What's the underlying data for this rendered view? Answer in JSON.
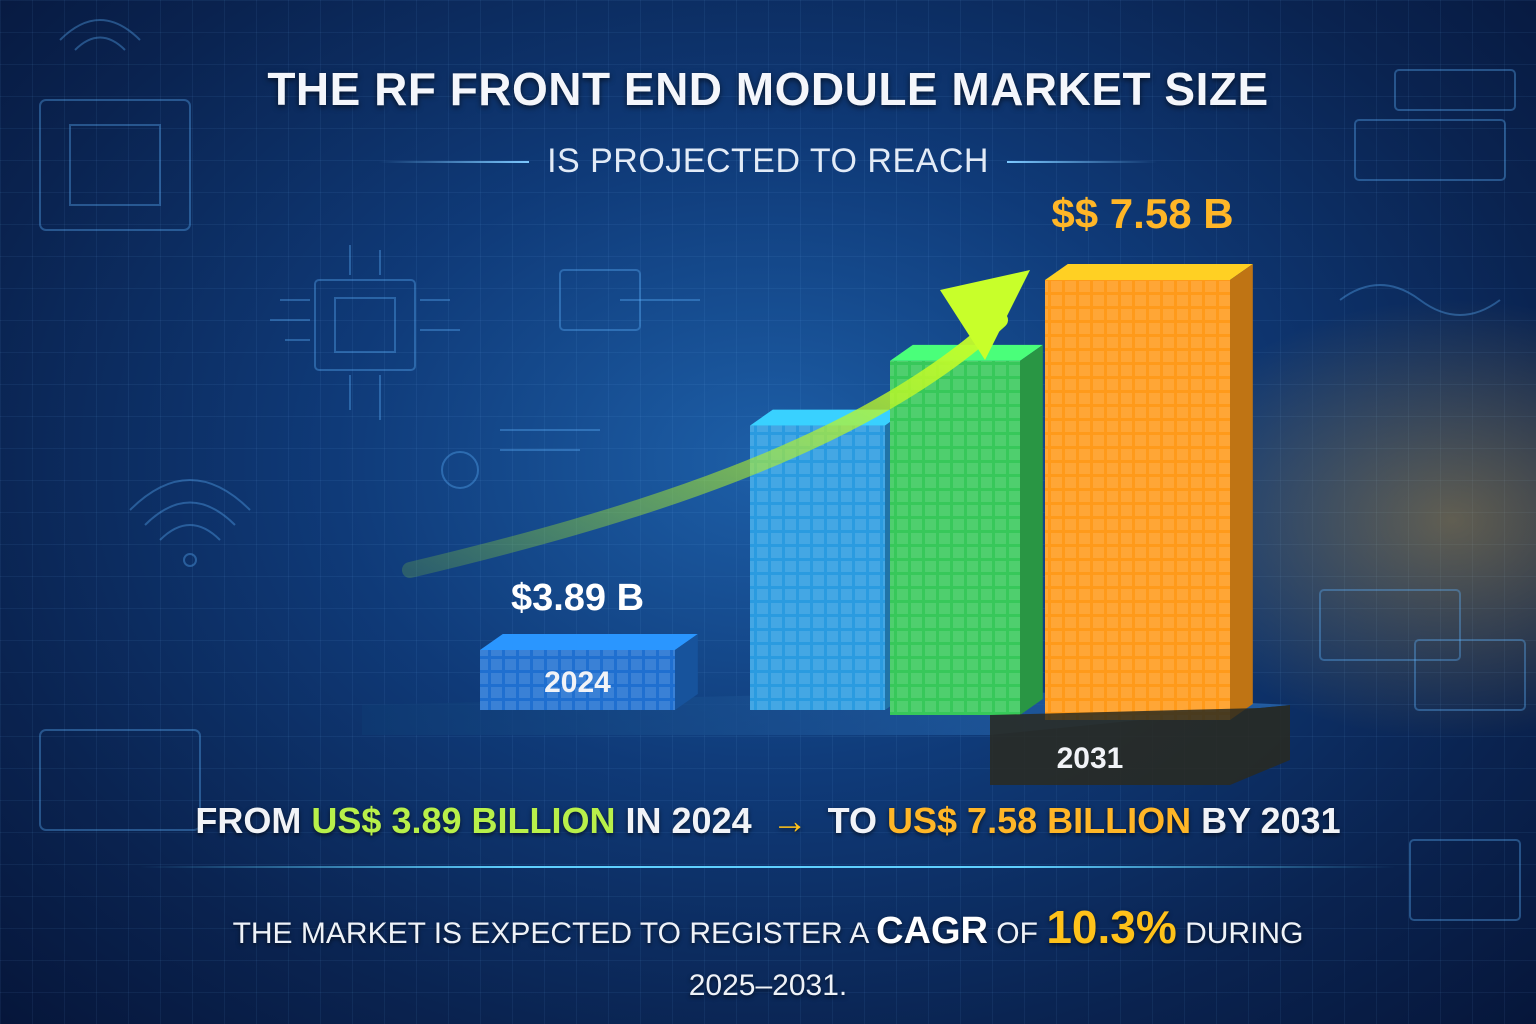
{
  "title": "THE RF FRONT END MODULE MARKET SIZE",
  "subtitle": "IS PROJECTED TO REACH",
  "chart_data": {
    "type": "bar",
    "categories": [
      "2024",
      "",
      "",
      "2031"
    ],
    "values": [
      3.89,
      4.9,
      6.1,
      7.58
    ],
    "value_labels": [
      "$3.89 B",
      "",
      "",
      "$$ 7.58 B"
    ],
    "trend_arrow": true,
    "colors": [
      "#1f6fd0",
      "#2a9be0",
      "#37c85a",
      "#ff9a1a"
    ]
  },
  "headline": {
    "from": "FROM",
    "start_value": "US$ 3.89 BILLION",
    "in": "IN",
    "start_year": "2024",
    "arrow": "→",
    "to": "TO",
    "end_value": "US$ 7.58 BILLION",
    "by": "BY",
    "end_year": "2031"
  },
  "cagr": {
    "prefix": "THE MARKET IS EXPECTED TO REGISTER A",
    "label": "CAGR",
    "of": "OF",
    "value": "10.3%",
    "during": "DURING",
    "period": "2025–2031."
  }
}
